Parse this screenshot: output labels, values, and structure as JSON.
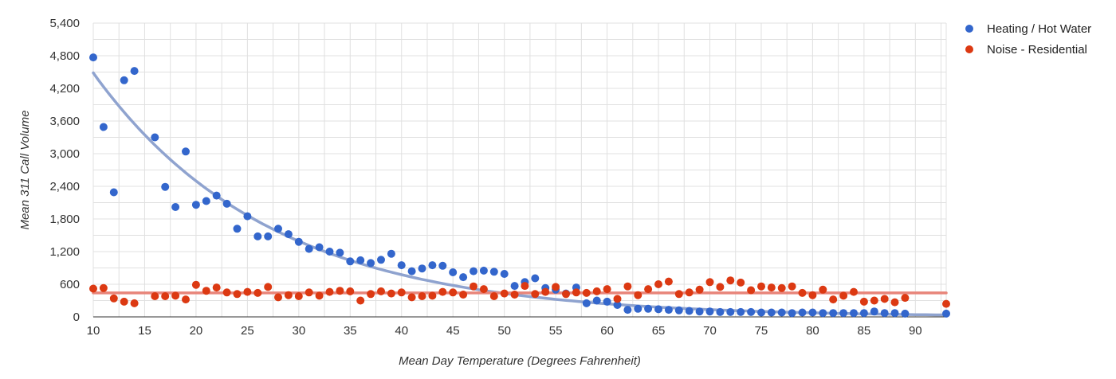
{
  "chart_data": {
    "type": "scatter",
    "title": "",
    "xlabel": "Mean Day Temperature (Degrees Fahrenheit)",
    "ylabel": "Mean 311 Call Volume",
    "xlim": [
      10,
      93
    ],
    "ylim": [
      0,
      5400
    ],
    "x_ticks": [
      "10",
      "15",
      "20",
      "25",
      "30",
      "35",
      "40",
      "45",
      "50",
      "55",
      "60",
      "65",
      "70",
      "75",
      "80",
      "85",
      "90"
    ],
    "y_ticks": [
      "0",
      "600",
      "1,200",
      "1,800",
      "2,400",
      "3,000",
      "3,600",
      "4,200",
      "4,800",
      "5,400"
    ],
    "grid": true,
    "legend_position": "top-right",
    "series": [
      {
        "name": "Heating / Hot Water",
        "color": "#3366cc",
        "trendline": {
          "type": "exponential",
          "color": "#8fa3cf",
          "a": 8050,
          "b": -0.0585
        },
        "points": [
          [
            10,
            4770
          ],
          [
            11,
            3490
          ],
          [
            12,
            2290
          ],
          [
            13,
            4350
          ],
          [
            14,
            4520
          ],
          [
            16,
            3300
          ],
          [
            17,
            2390
          ],
          [
            18,
            2020
          ],
          [
            19,
            3040
          ],
          [
            20,
            2060
          ],
          [
            21,
            2130
          ],
          [
            22,
            2230
          ],
          [
            23,
            2080
          ],
          [
            24,
            1620
          ],
          [
            25,
            1850
          ],
          [
            26,
            1480
          ],
          [
            27,
            1480
          ],
          [
            28,
            1620
          ],
          [
            29,
            1520
          ],
          [
            30,
            1380
          ],
          [
            31,
            1250
          ],
          [
            32,
            1280
          ],
          [
            33,
            1200
          ],
          [
            34,
            1180
          ],
          [
            35,
            1020
          ],
          [
            36,
            1040
          ],
          [
            37,
            990
          ],
          [
            38,
            1050
          ],
          [
            39,
            1160
          ],
          [
            40,
            950
          ],
          [
            41,
            840
          ],
          [
            42,
            890
          ],
          [
            43,
            950
          ],
          [
            44,
            940
          ],
          [
            45,
            820
          ],
          [
            46,
            730
          ],
          [
            47,
            840
          ],
          [
            48,
            850
          ],
          [
            49,
            830
          ],
          [
            50,
            790
          ],
          [
            51,
            570
          ],
          [
            52,
            640
          ],
          [
            53,
            710
          ],
          [
            54,
            530
          ],
          [
            55,
            500
          ],
          [
            56,
            430
          ],
          [
            57,
            540
          ],
          [
            58,
            250
          ],
          [
            59,
            300
          ],
          [
            60,
            280
          ],
          [
            61,
            220
          ],
          [
            62,
            130
          ],
          [
            63,
            150
          ],
          [
            64,
            150
          ],
          [
            65,
            140
          ],
          [
            66,
            130
          ],
          [
            67,
            120
          ],
          [
            68,
            110
          ],
          [
            69,
            100
          ],
          [
            70,
            100
          ],
          [
            71,
            90
          ],
          [
            72,
            90
          ],
          [
            73,
            90
          ],
          [
            74,
            90
          ],
          [
            75,
            80
          ],
          [
            76,
            80
          ],
          [
            77,
            80
          ],
          [
            78,
            70
          ],
          [
            79,
            80
          ],
          [
            80,
            80
          ],
          [
            81,
            70
          ],
          [
            82,
            70
          ],
          [
            83,
            70
          ],
          [
            84,
            70
          ],
          [
            85,
            70
          ],
          [
            86,
            100
          ],
          [
            87,
            70
          ],
          [
            88,
            70
          ],
          [
            89,
            60
          ],
          [
            93,
            60
          ]
        ]
      },
      {
        "name": "Noise - Residential",
        "color": "#dc3912",
        "trendline": {
          "type": "linear",
          "color": "#e8857a",
          "value": 440
        },
        "points": [
          [
            10,
            520
          ],
          [
            11,
            530
          ],
          [
            12,
            340
          ],
          [
            13,
            280
          ],
          [
            14,
            250
          ],
          [
            16,
            380
          ],
          [
            17,
            380
          ],
          [
            18,
            390
          ],
          [
            19,
            320
          ],
          [
            20,
            590
          ],
          [
            21,
            480
          ],
          [
            22,
            540
          ],
          [
            23,
            450
          ],
          [
            24,
            420
          ],
          [
            25,
            460
          ],
          [
            26,
            440
          ],
          [
            27,
            550
          ],
          [
            28,
            360
          ],
          [
            29,
            400
          ],
          [
            30,
            380
          ],
          [
            31,
            450
          ],
          [
            32,
            390
          ],
          [
            33,
            460
          ],
          [
            34,
            480
          ],
          [
            35,
            470
          ],
          [
            36,
            300
          ],
          [
            37,
            420
          ],
          [
            38,
            470
          ],
          [
            39,
            430
          ],
          [
            40,
            450
          ],
          [
            41,
            360
          ],
          [
            42,
            380
          ],
          [
            43,
            390
          ],
          [
            44,
            460
          ],
          [
            45,
            450
          ],
          [
            46,
            410
          ],
          [
            47,
            560
          ],
          [
            48,
            510
          ],
          [
            49,
            380
          ],
          [
            50,
            430
          ],
          [
            51,
            410
          ],
          [
            52,
            570
          ],
          [
            53,
            420
          ],
          [
            54,
            460
          ],
          [
            55,
            550
          ],
          [
            56,
            420
          ],
          [
            57,
            450
          ],
          [
            58,
            440
          ],
          [
            59,
            470
          ],
          [
            60,
            510
          ],
          [
            61,
            330
          ],
          [
            62,
            560
          ],
          [
            63,
            400
          ],
          [
            64,
            510
          ],
          [
            65,
            600
          ],
          [
            66,
            650
          ],
          [
            67,
            420
          ],
          [
            68,
            450
          ],
          [
            69,
            500
          ],
          [
            70,
            640
          ],
          [
            71,
            550
          ],
          [
            72,
            670
          ],
          [
            73,
            630
          ],
          [
            74,
            490
          ],
          [
            75,
            560
          ],
          [
            76,
            540
          ],
          [
            77,
            530
          ],
          [
            78,
            560
          ],
          [
            79,
            440
          ],
          [
            80,
            400
          ],
          [
            81,
            500
          ],
          [
            82,
            320
          ],
          [
            83,
            390
          ],
          [
            84,
            460
          ],
          [
            85,
            280
          ],
          [
            86,
            300
          ],
          [
            87,
            330
          ],
          [
            88,
            270
          ],
          [
            89,
            350
          ],
          [
            93,
            240
          ]
        ]
      }
    ]
  }
}
